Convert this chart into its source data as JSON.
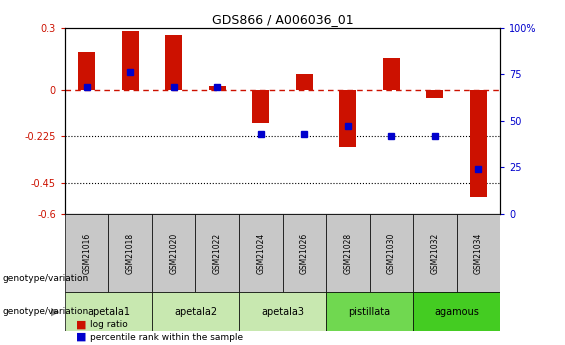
{
  "title": "GDS866 / A006036_01",
  "samples": [
    "GSM21016",
    "GSM21018",
    "GSM21020",
    "GSM21022",
    "GSM21024",
    "GSM21026",
    "GSM21028",
    "GSM21030",
    "GSM21032",
    "GSM21034"
  ],
  "log_ratio": [
    0.18,
    0.285,
    0.265,
    0.02,
    -0.16,
    0.075,
    -0.275,
    0.155,
    -0.04,
    -0.52
  ],
  "percentile_rank": [
    68,
    76,
    68,
    68,
    43,
    43,
    47,
    42,
    42,
    24
  ],
  "groups": [
    {
      "label": "apetala1",
      "indices": [
        0,
        1
      ],
      "color": "#c8e8b0"
    },
    {
      "label": "apetala2",
      "indices": [
        2,
        3
      ],
      "color": "#c8e8b0"
    },
    {
      "label": "apetala3",
      "indices": [
        4,
        5
      ],
      "color": "#c8e8b0"
    },
    {
      "label": "pistillata",
      "indices": [
        6,
        7
      ],
      "color": "#70d850"
    },
    {
      "label": "agamous",
      "indices": [
        8,
        9
      ],
      "color": "#44cc22"
    }
  ],
  "ylim_left": [
    -0.6,
    0.3
  ],
  "ylim_right": [
    0,
    100
  ],
  "yticks_left": [
    0.3,
    0.0,
    -0.225,
    -0.45,
    -0.6
  ],
  "ytick_labels_left": [
    "0.3",
    "0",
    "-0.225",
    "-0.45",
    "-0.6"
  ],
  "yticks_right": [
    100,
    75,
    50,
    25,
    0
  ],
  "bar_color": "#cc1100",
  "dot_color": "#0000cc",
  "hline_color": "#cc1100",
  "hline_style": "--",
  "dotted_lines": [
    -0.225,
    -0.45
  ],
  "background_color": "#ffffff",
  "genotype_label": "genotype/variation",
  "legend_bar_label": "log ratio",
  "legend_dot_label": "percentile rank within the sample",
  "sample_box_color": "#c8c8c8",
  "bar_width": 0.4
}
